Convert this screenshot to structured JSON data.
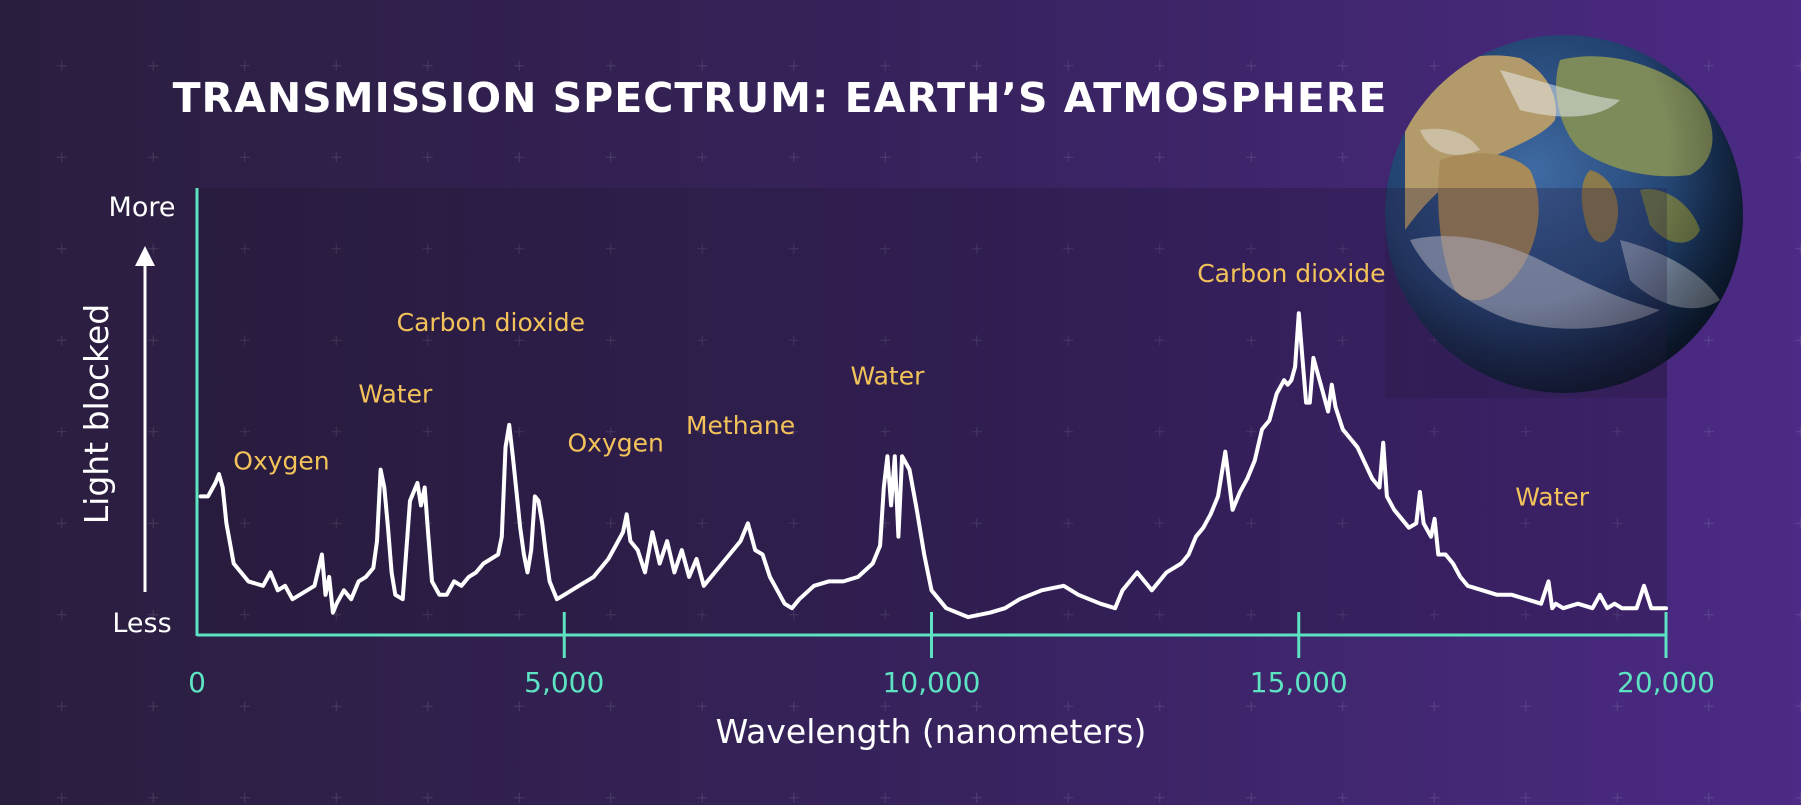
{
  "colors": {
    "accent": "#5de3c1",
    "annotation": "#f3c35a",
    "line": "#ffffff",
    "background_left": "#2a1e3e",
    "background_right": "#4c2a85"
  },
  "icons": {
    "earth": "earth-globe-image"
  },
  "chart_data": {
    "type": "line",
    "title": "TRANSMISSION SPECTRUM: EARTH’S ATMOSPHERE",
    "xlabel": "Wavelength (nanometers)",
    "ylabel": "Light blocked",
    "y_top_label": "More",
    "y_bottom_label": "Less",
    "xlim": [
      0,
      20000
    ],
    "ylim": [
      0,
      1
    ],
    "y_scale": "relative, unlabeled",
    "grid": false,
    "x_ticks": [
      {
        "value": 0,
        "label": "0"
      },
      {
        "value": 5000,
        "label": "5,000"
      },
      {
        "value": 10000,
        "label": "10,000"
      },
      {
        "value": 15000,
        "label": "15,000"
      },
      {
        "value": 20000,
        "label": "20,000"
      }
    ],
    "series": [
      {
        "x": [
          50,
          150,
          250,
          300,
          350,
          400,
          500,
          700,
          900,
          1000,
          1100,
          1200,
          1300,
          1400,
          1500,
          1600,
          1700,
          1750,
          1800,
          1850,
          1900,
          2000,
          2100,
          2200,
          2300,
          2400,
          2450,
          2500,
          2550,
          2600,
          2650,
          2700,
          2800,
          2900,
          3000,
          3050,
          3100,
          3150,
          3200,
          3300,
          3400,
          3500,
          3600,
          3700,
          3800,
          3900,
          4000,
          4100,
          4150,
          4200,
          4250,
          4300,
          4350,
          4400,
          4450,
          4500,
          4550,
          4600,
          4650,
          4700,
          4750,
          4800,
          4900,
          5000,
          5200,
          5400,
          5600,
          5700,
          5800,
          5850,
          5900,
          6000,
          6100,
          6200,
          6300,
          6400,
          6500,
          6600,
          6700,
          6800,
          6900,
          7000,
          7200,
          7400,
          7500,
          7600,
          7700,
          7800,
          7900,
          8000,
          8100,
          8200,
          8400,
          8600,
          8800,
          9000,
          9200,
          9300,
          9350,
          9400,
          9450,
          9500,
          9550,
          9600,
          9700,
          9800,
          9900,
          10000,
          10200,
          10500,
          10800,
          11000,
          11200,
          11500,
          11800,
          12000,
          12300,
          12500,
          12550,
          12600,
          12800,
          13000,
          13200,
          13400,
          13500,
          13600,
          13700,
          13800,
          13850,
          13900,
          14000,
          14100,
          14200,
          14300,
          14400,
          14500,
          14600,
          14700,
          14800,
          14850,
          14900,
          14950,
          15000,
          15050,
          15100,
          15150,
          15200,
          15300,
          15400,
          15450,
          15500,
          15600,
          15800,
          16000,
          16100,
          16150,
          16200,
          16300,
          16400,
          16500,
          16600,
          16650,
          16700,
          16800,
          16850,
          16900,
          17000,
          17100,
          17200,
          17300,
          17500,
          17700,
          17900,
          18100,
          18300,
          18400,
          18450,
          18500,
          18600,
          18800,
          19000,
          19100,
          19200,
          19300,
          19400,
          19500,
          19600,
          19700,
          19800,
          19900,
          20000
        ],
        "y": [
          0.31,
          0.31,
          0.34,
          0.36,
          0.33,
          0.25,
          0.16,
          0.12,
          0.11,
          0.14,
          0.1,
          0.11,
          0.08,
          0.09,
          0.1,
          0.11,
          0.18,
          0.09,
          0.13,
          0.05,
          0.07,
          0.1,
          0.08,
          0.12,
          0.13,
          0.15,
          0.21,
          0.37,
          0.33,
          0.24,
          0.14,
          0.09,
          0.08,
          0.3,
          0.34,
          0.29,
          0.33,
          0.22,
          0.12,
          0.09,
          0.09,
          0.12,
          0.11,
          0.13,
          0.14,
          0.16,
          0.17,
          0.18,
          0.22,
          0.42,
          0.47,
          0.4,
          0.32,
          0.24,
          0.18,
          0.14,
          0.19,
          0.31,
          0.3,
          0.25,
          0.18,
          0.12,
          0.08,
          0.09,
          0.11,
          0.13,
          0.17,
          0.2,
          0.23,
          0.27,
          0.21,
          0.19,
          0.14,
          0.23,
          0.16,
          0.21,
          0.14,
          0.19,
          0.13,
          0.17,
          0.11,
          0.13,
          0.17,
          0.21,
          0.25,
          0.19,
          0.18,
          0.13,
          0.1,
          0.07,
          0.06,
          0.08,
          0.11,
          0.12,
          0.12,
          0.13,
          0.16,
          0.2,
          0.33,
          0.4,
          0.29,
          0.4,
          0.22,
          0.4,
          0.37,
          0.28,
          0.18,
          0.1,
          0.06,
          0.04,
          0.05,
          0.06,
          0.08,
          0.1,
          0.11,
          0.09,
          0.07,
          0.06,
          0.08,
          0.1,
          0.14,
          0.1,
          0.14,
          0.16,
          0.18,
          0.22,
          0.24,
          0.27,
          0.29,
          0.31,
          0.41,
          0.28,
          0.32,
          0.35,
          0.39,
          0.46,
          0.48,
          0.54,
          0.57,
          0.56,
          0.57,
          0.6,
          0.72,
          0.62,
          0.52,
          0.52,
          0.62,
          0.56,
          0.5,
          0.56,
          0.51,
          0.46,
          0.42,
          0.35,
          0.33,
          0.43,
          0.31,
          0.28,
          0.26,
          0.24,
          0.25,
          0.32,
          0.25,
          0.22,
          0.26,
          0.18,
          0.18,
          0.16,
          0.13,
          0.11,
          0.1,
          0.09,
          0.09,
          0.08,
          0.07,
          0.12,
          0.06,
          0.07,
          0.06,
          0.07,
          0.06,
          0.09,
          0.06,
          0.07,
          0.06,
          0.06,
          0.06,
          0.11,
          0.06,
          0.06,
          0.06
        ]
      }
    ],
    "annotations": [
      {
        "text": "Oxygen",
        "x": 1150,
        "y": 0.37
      },
      {
        "text": "Water",
        "x": 2700,
        "y": 0.52
      },
      {
        "text": "Carbon dioxide",
        "x": 4000,
        "y": 0.68
      },
      {
        "text": "Oxygen",
        "x": 5700,
        "y": 0.41
      },
      {
        "text": "Methane",
        "x": 7400,
        "y": 0.45
      },
      {
        "text": "Water",
        "x": 9400,
        "y": 0.56
      },
      {
        "text": "Carbon dioxide",
        "x": 14900,
        "y": 0.79
      },
      {
        "text": "Water",
        "x": 18450,
        "y": 0.29
      }
    ]
  }
}
